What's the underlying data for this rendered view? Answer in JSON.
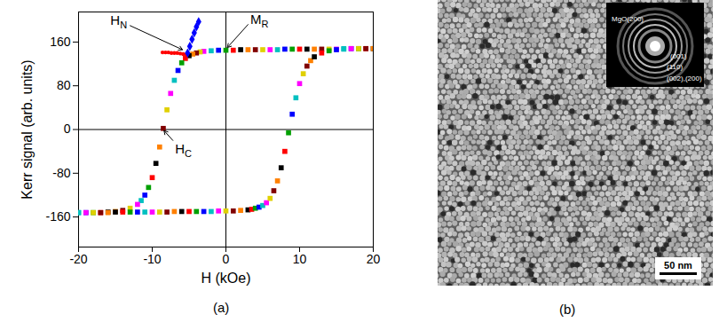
{
  "chart_data": {
    "type": "scatter",
    "caption": "(a)",
    "xlabel": "H (kOe)",
    "ylabel": "Kerr signal (arb. units)",
    "xlim": [
      -20,
      20
    ],
    "xticks": [
      -20,
      -10,
      0,
      10,
      20
    ],
    "ylim": [
      -215,
      215
    ],
    "yticks": [
      -160,
      -80,
      0,
      80,
      160
    ],
    "marker": "square",
    "series": [
      {
        "marker": "square",
        "x": [
          20,
          19,
          18,
          17,
          16,
          15,
          14,
          13,
          12,
          11,
          10,
          9,
          8,
          7,
          6,
          5,
          4,
          3,
          2,
          1,
          0,
          -1,
          -2,
          -3,
          -3.5,
          -4,
          -4.5,
          -5,
          -5.5,
          -6,
          -6.5,
          -7,
          -7.5,
          -8,
          -8.5,
          -9,
          -9.5,
          -10,
          -10.5,
          -11,
          -11.5,
          -12,
          -13,
          -14,
          -15,
          -16,
          -17,
          -18,
          -19,
          -20
        ],
        "values": [
          148,
          148,
          148,
          148,
          148,
          147,
          147,
          147,
          147,
          147,
          147,
          147,
          147,
          146,
          146,
          146,
          146,
          146,
          146,
          145,
          145,
          145,
          144,
          143,
          142,
          140,
          138,
          135,
          130,
          122,
          108,
          90,
          66,
          36,
          2,
          -32,
          -62,
          -88,
          -106,
          -120,
          -130,
          -137,
          -144,
          -148,
          -150,
          -151,
          -152,
          -152,
          -152,
          -152
        ],
        "colors": [
          "#000000",
          "#ff0000",
          "#00a000",
          "#0000ff",
          "#00c0c0",
          "#ff00ff",
          "#e0d000",
          "#800000",
          "#ff8000",
          "#000000",
          "#ff0000",
          "#00a000",
          "#0000ff",
          "#00c0c0",
          "#ff00ff",
          "#e0d000",
          "#800000",
          "#ff8000",
          "#000000",
          "#ff0000",
          "#00a000",
          "#0000ff",
          "#00c0c0",
          "#ff00ff",
          "#e0d000",
          "#800000",
          "#ff8000",
          "#000000",
          "#ff0000",
          "#00a000",
          "#0000ff",
          "#00c0c0",
          "#ff00ff",
          "#e0d000",
          "#800000",
          "#ff8000",
          "#000000",
          "#ff0000",
          "#00a000",
          "#0000ff",
          "#00c0c0",
          "#ff00ff",
          "#e0d000",
          "#800000",
          "#ff8000",
          "#000000",
          "#ff0000",
          "#00a000",
          "#0000ff",
          "#00c0c0"
        ]
      },
      {
        "marker": "square",
        "x": [
          -20,
          -19,
          -18,
          -17,
          -16,
          -15,
          -14,
          -13,
          -12,
          -11,
          -10,
          -9,
          -8,
          -7,
          -6,
          -5,
          -4,
          -3,
          -2,
          -1,
          0,
          1,
          2,
          3,
          3.5,
          4,
          4.5,
          5,
          5.5,
          6,
          6.5,
          7,
          7.5,
          8,
          8.5,
          9,
          9.5,
          10,
          10.5,
          11,
          11.5,
          12,
          13,
          14,
          15,
          16,
          17,
          18,
          19,
          20
        ],
        "values": [
          -152,
          -152,
          -152,
          -152,
          -152,
          -151,
          -151,
          -151,
          -151,
          -151,
          -151,
          -151,
          -151,
          -150,
          -150,
          -150,
          -150,
          -150,
          -150,
          -149,
          -149,
          -149,
          -148,
          -147,
          -146,
          -144,
          -142,
          -139,
          -134,
          -126,
          -112,
          -94,
          -70,
          -40,
          -6,
          28,
          58,
          84,
          102,
          116,
          126,
          133,
          140,
          144,
          146,
          147,
          148,
          148,
          148,
          148
        ],
        "colors": [
          "#00c0c0",
          "#ff00ff",
          "#e0d000",
          "#800000",
          "#ff8000",
          "#000000",
          "#ff0000",
          "#00a000",
          "#0000ff",
          "#00c0c0",
          "#ff00ff",
          "#e0d000",
          "#800000",
          "#ff8000",
          "#000000",
          "#ff0000",
          "#00a000",
          "#0000ff",
          "#00c0c0",
          "#ff00ff",
          "#e0d000",
          "#800000",
          "#ff8000",
          "#000000",
          "#ff0000",
          "#00a000",
          "#0000ff",
          "#00c0c0",
          "#ff00ff",
          "#e0d000",
          "#800000",
          "#ff8000",
          "#000000",
          "#ff0000",
          "#00a000",
          "#0000ff",
          "#00c0c0",
          "#ff00ff",
          "#e0d000",
          "#800000",
          "#ff8000",
          "#000000",
          "#ff0000",
          "#00a000",
          "#0000ff",
          "#00c0c0",
          "#ff00ff",
          "#e0d000",
          "#800000",
          "#ff8000"
        ]
      },
      {
        "marker": "circle",
        "color": "#ff0000",
        "x": [
          -8.6,
          -8.2,
          -7.8,
          -7.4,
          -7,
          -6.6,
          -6.2,
          -5.8,
          -5.4
        ],
        "values": [
          141,
          141,
          141,
          140,
          140,
          140,
          139,
          138,
          137
        ]
      },
      {
        "marker": "diamond",
        "color": "#0000ff",
        "x": [
          -5.2,
          -4.9,
          -4.6,
          -4.3,
          -4,
          -3.7
        ],
        "values": [
          140,
          152,
          165,
          177,
          188,
          197
        ]
      }
    ],
    "annotations": [
      {
        "text": "H",
        "sub": "N",
        "xytext": [
          -13,
          190
        ],
        "xy": [
          -5.9,
          146
        ]
      },
      {
        "text": "M",
        "sub": "R",
        "xytext": [
          3,
          192
        ],
        "xy": [
          0.2,
          150
        ]
      },
      {
        "text": "H",
        "sub": "C",
        "xytext": [
          -7.2,
          -20
        ],
        "xy": [
          -8.4,
          -2
        ]
      }
    ]
  },
  "image": {
    "caption": "(b)",
    "scale_bar": "50 nm",
    "inset_labels": [
      "MgO(200)",
      "(001)",
      "(110)",
      "(002),(200)"
    ]
  }
}
